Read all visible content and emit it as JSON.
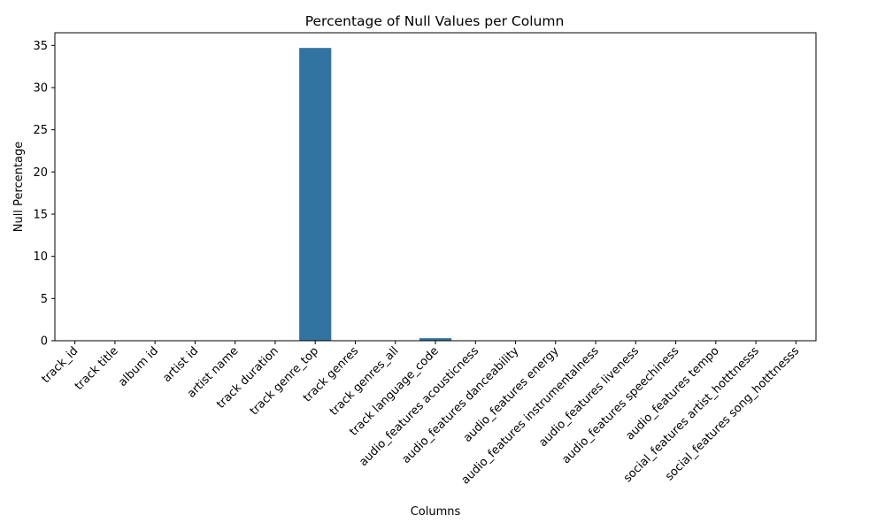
{
  "chart_data": {
    "type": "bar",
    "title": "Percentage of Null Values per Column",
    "xlabel": "Columns",
    "ylabel": "Null Percentage",
    "ylim": [
      0,
      36.5
    ],
    "yticks": [
      0,
      5,
      10,
      15,
      20,
      25,
      30,
      35
    ],
    "grid": false,
    "legend": "none",
    "bar_color": "#3274a1",
    "categories": [
      "track_id",
      "track title",
      "album id",
      "artist id",
      "artist name",
      "track duration",
      "track genre_top",
      "track genres",
      "track genres_all",
      "track language_code",
      "audio_features acousticness",
      "audio_features danceability",
      "audio_features energy",
      "audio_features instrumentalness",
      "audio_features liveness",
      "audio_features speechiness",
      "audio_features tempo",
      "social_features artist_hotttnesss",
      "social_features song_hotttnesss"
    ],
    "values": [
      0,
      0,
      0,
      0,
      0,
      0,
      34.7,
      0,
      0,
      0.3,
      0,
      0,
      0,
      0,
      0,
      0,
      0,
      0,
      0
    ]
  }
}
